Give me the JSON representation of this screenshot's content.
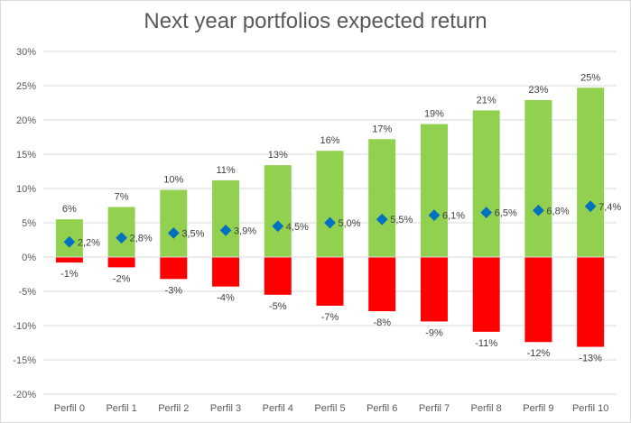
{
  "chart_data": {
    "type": "bar",
    "title": "Next year portfolios expected return",
    "categories": [
      "Perfil 0",
      "Perfil 1",
      "Perfil 2",
      "Perfil 3",
      "Perfil 4",
      "Perfil 5",
      "Perfil 6",
      "Perfil 7",
      "Perfil 8",
      "Perfil 9",
      "Perfil 10"
    ],
    "series": [
      {
        "values": [
          5.5,
          7.3,
          9.8,
          11.2,
          13.4,
          15.5,
          17.2,
          19.4,
          21.4,
          22.9,
          24.7
        ],
        "labels": [
          "6%",
          "7%",
          "10%",
          "11%",
          "13%",
          "16%",
          "17%",
          "19%",
          "21%",
          "23%",
          "25%"
        ],
        "color": "#92d050"
      },
      {
        "values": [
          -0.8,
          -1.5,
          -3.2,
          -4.3,
          -5.5,
          -7.1,
          -7.9,
          -9.4,
          -10.9,
          -12.4,
          -13.1
        ],
        "labels": [
          "-1%",
          "-2%",
          "-3%",
          "-4%",
          "-5%",
          "-7%",
          "-8%",
          "-9%",
          "-11%",
          "-12%",
          "-13%"
        ],
        "color": "#ff0000"
      },
      {
        "type": "scatter",
        "values": [
          2.2,
          2.8,
          3.5,
          3.9,
          4.5,
          5.0,
          5.5,
          6.1,
          6.5,
          6.8,
          7.4
        ],
        "labels": [
          "2,2%",
          "2,8%",
          "3,5%",
          "3,9%",
          "4,5%",
          "5,0%",
          "5,5%",
          "6,1%",
          "6,5%",
          "6,8%",
          "7,4%"
        ],
        "color": "#0070c0"
      }
    ],
    "ylim": [
      -20,
      30
    ],
    "yticks": [
      -20,
      -15,
      -10,
      -5,
      0,
      5,
      10,
      15,
      20,
      25,
      30
    ],
    "ytick_labels": [
      "-20%",
      "-15%",
      "-10%",
      "-5%",
      "0%",
      "5%",
      "10%",
      "15%",
      "20%",
      "25%",
      "30%"
    ],
    "xlabel": "",
    "ylabel": "",
    "grid": true,
    "gridline_color": "#d9d9d9"
  }
}
